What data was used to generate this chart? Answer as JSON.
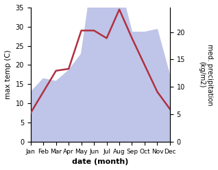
{
  "months": [
    "Jan",
    "Feb",
    "Mar",
    "Apr",
    "May",
    "Jun",
    "Jul",
    "Aug",
    "Sep",
    "Oct",
    "Nov",
    "Dec"
  ],
  "temp": [
    7.5,
    13.0,
    18.5,
    19.0,
    29.0,
    29.0,
    27.0,
    34.5,
    27.0,
    20.0,
    13.0,
    8.5
  ],
  "precip": [
    9.0,
    11.5,
    11.0,
    13.0,
    16.0,
    32.0,
    32.0,
    29.0,
    20.0,
    20.0,
    20.5,
    12.0
  ],
  "temp_color": "#b03040",
  "precip_fill_color": "#bfc5e8",
  "ylabel_left": "max temp (C)",
  "ylabel_right": "med. precipitation\n(kg/m2)",
  "xlabel": "date (month)",
  "ylim_left": [
    0,
    35
  ],
  "ylim_right": [
    0,
    24.5
  ],
  "yticks_left": [
    0,
    5,
    10,
    15,
    20,
    25,
    30,
    35
  ],
  "yticks_right": [
    0,
    5,
    10,
    15,
    20
  ],
  "bg_color": "#ffffff"
}
